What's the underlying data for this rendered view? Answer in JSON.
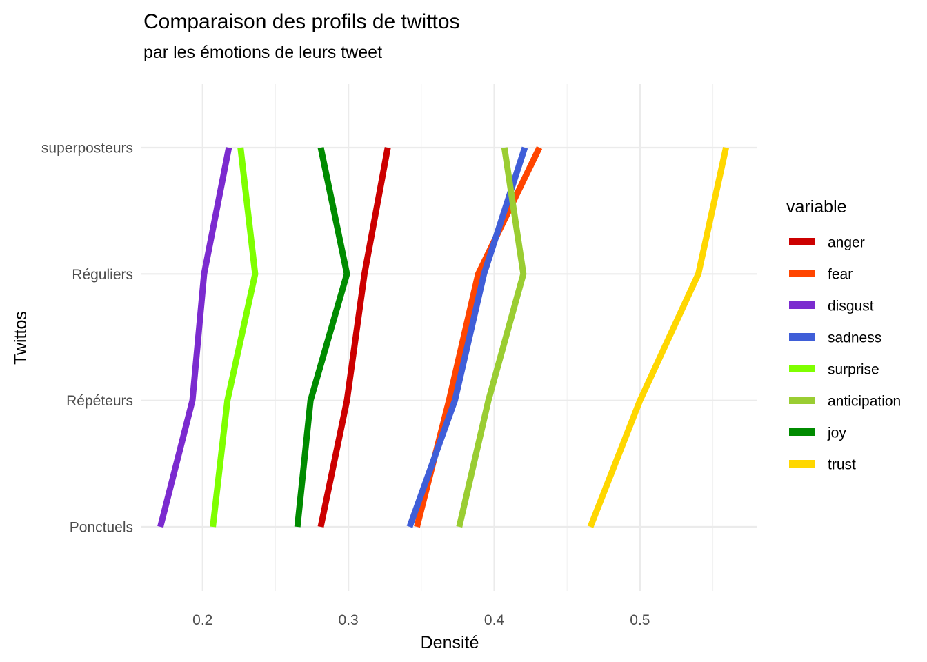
{
  "chart_data": {
    "type": "line",
    "title": "Comparaison des profils de twittos",
    "subtitle": "par les émotions de leurs tweet",
    "xlabel": "Densité",
    "ylabel": "Twittos",
    "xlim": [
      0.158,
      0.58
    ],
    "x_ticks": [
      0.2,
      0.3,
      0.4,
      0.5
    ],
    "x_tick_labels": [
      "0.2",
      "0.3",
      "0.4",
      "0.5"
    ],
    "categories": [
      "Ponctuels",
      "Répéteurs",
      "Réguliers",
      "superposteurs"
    ],
    "grid": true,
    "legend": {
      "title": "variable",
      "position": "right"
    },
    "series": [
      {
        "name": "anger",
        "color": "#cc0000",
        "values": [
          0.281,
          0.299,
          0.311,
          0.327
        ]
      },
      {
        "name": "fear",
        "color": "#ff4500",
        "values": [
          0.347,
          0.369,
          0.389,
          0.431
        ]
      },
      {
        "name": "disgust",
        "color": "#7b2bcf",
        "values": [
          0.171,
          0.193,
          0.201,
          0.218
        ]
      },
      {
        "name": "sadness",
        "color": "#3f5ed8",
        "values": [
          0.342,
          0.373,
          0.393,
          0.421
        ]
      },
      {
        "name": "surprise",
        "color": "#7fff00",
        "values": [
          0.207,
          0.217,
          0.236,
          0.226
        ]
      },
      {
        "name": "anticipation",
        "color": "#9acd32",
        "values": [
          0.376,
          0.396,
          0.42,
          0.407
        ]
      },
      {
        "name": "joy",
        "color": "#008b00",
        "values": [
          0.265,
          0.274,
          0.299,
          0.281
        ]
      },
      {
        "name": "trust",
        "color": "#ffd700",
        "values": [
          0.466,
          0.5,
          0.54,
          0.559
        ]
      }
    ]
  }
}
